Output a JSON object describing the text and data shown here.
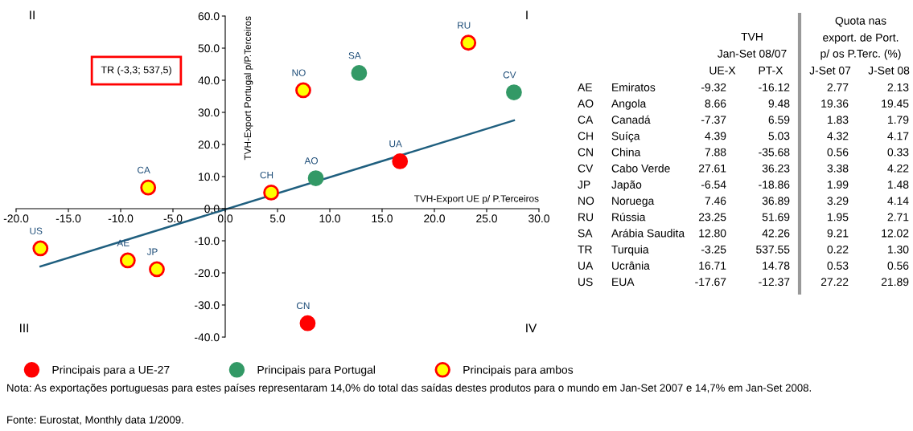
{
  "chart_data": [
    {
      "type": "scatter",
      "xlabel": "TVH-Export UE p/ P.Terceiros",
      "ylabel": "TVH-Export Portugal p/P.Terceiros",
      "xlim": [
        -20,
        30
      ],
      "ylim": [
        -40,
        60
      ],
      "xticks": [
        {
          "value": -20,
          "label": "-20.0"
        },
        {
          "value": -15,
          "label": "-15.0"
        },
        {
          "value": -10,
          "label": "-10.0"
        },
        {
          "value": -5,
          "label": "-5.0"
        },
        {
          "value": 0,
          "label": "0.0"
        },
        {
          "value": 5,
          "label": "5.0"
        },
        {
          "value": 10,
          "label": "10.0"
        },
        {
          "value": 15,
          "label": "15.0"
        },
        {
          "value": 20,
          "label": "20.0"
        },
        {
          "value": 25,
          "label": "25.0"
        },
        {
          "value": 30,
          "label": "30.0"
        }
      ],
      "yticks": [
        {
          "value": -40,
          "label": "-40.0"
        },
        {
          "value": -30,
          "label": "-30.0"
        },
        {
          "value": -20,
          "label": "-20.0"
        },
        {
          "value": -10,
          "label": "-10.0"
        },
        {
          "value": 0,
          "label": "0.0"
        },
        {
          "value": 10,
          "label": "10.0"
        },
        {
          "value": 20,
          "label": "20.0"
        },
        {
          "value": 30,
          "label": "30.0"
        },
        {
          "value": 40,
          "label": "40.0"
        },
        {
          "value": 50,
          "label": "50.0"
        },
        {
          "value": 60,
          "label": "60.0"
        }
      ],
      "marker": "circle",
      "grid": false,
      "legend": "bottom",
      "series": [
        {
          "name": "Principais para a UE-27",
          "color": "#ff0000",
          "x": [
            7.88,
            16.71
          ],
          "values": [
            -35.68,
            14.78
          ]
        },
        {
          "name": "Principais para Portugal",
          "color": "#339966",
          "x": [
            12.8,
            27.61,
            8.66
          ],
          "values": [
            42.26,
            36.23,
            9.48
          ]
        },
        {
          "name": "Principais para ambos",
          "color": "#ffff00",
          "x": [
            23.25,
            7.46,
            -7.37,
            4.39,
            -17.67,
            -9.32,
            -6.54
          ],
          "values": [
            51.69,
            36.89,
            6.59,
            5.03,
            -12.37,
            -16.12,
            -18.86
          ]
        },
        {
          "type": "line",
          "marker": "none",
          "color": "#1f5f7f",
          "x": [
            -17.67,
            27.61
          ],
          "values": [
            -18.0,
            27.5
          ]
        }
      ],
      "annotations": [
        {
          "text": "CN",
          "x": 7.88,
          "y": -35.68
        },
        {
          "text": "UA",
          "x": 16.71,
          "y": 14.78
        },
        {
          "text": "SA",
          "x": 12.8,
          "y": 42.26
        },
        {
          "text": "CV",
          "x": 27.61,
          "y": 36.23
        },
        {
          "text": "AO",
          "x": 8.66,
          "y": 9.48
        },
        {
          "text": "RU",
          "x": 23.25,
          "y": 51.69
        },
        {
          "text": "NO",
          "x": 7.46,
          "y": 36.89
        },
        {
          "text": "CA",
          "x": -7.37,
          "y": 6.59
        },
        {
          "text": "CH",
          "x": 4.39,
          "y": 5.03
        },
        {
          "text": "US",
          "x": -17.67,
          "y": -12.37
        },
        {
          "text": "AE",
          "x": -9.32,
          "y": -16.12
        },
        {
          "text": "JP",
          "x": -6.54,
          "y": -18.86
        },
        "II",
        "I",
        "III",
        "IV",
        "TR (-3,3; 537,5)",
        "Nota: As exportações portuguesas para estes países representaram 14,0% do total das saídas destes produtos para o mundo em Jan-Set 2007 e 14,7% em Jan-Set 2008.",
        "Fonte: Eurostat, Monthly data 1/2009."
      ]
    },
    {
      "type": "other",
      "annotations": [
        "TVH",
        "Jan-Set 08/07",
        "UE-X",
        "PT-X",
        "Quota nas",
        "export. de Port.",
        "p/ os P.Terc. (%)",
        "J-Set 07",
        "J-Set 08"
      ],
      "cell_labels": [
        [
          "AE",
          "Emiratos",
          "-9.32",
          "-16.12",
          "2.77",
          "2.13"
        ],
        [
          "AO",
          "Angola",
          "8.66",
          "9.48",
          "19.36",
          "19.45"
        ],
        [
          "CA",
          "Canadá",
          "-7.37",
          "6.59",
          "1.83",
          "1.79"
        ],
        [
          "CH",
          "Suíça",
          "4.39",
          "5.03",
          "4.32",
          "4.17"
        ],
        [
          "CN",
          "China",
          "7.88",
          "-35.68",
          "0.56",
          "0.33"
        ],
        [
          "CV",
          "Cabo Verde",
          "27.61",
          "36.23",
          "3.38",
          "4.22"
        ],
        [
          "JP",
          "Japão",
          "-6.54",
          "-18.86",
          "1.99",
          "1.48"
        ],
        [
          "NO",
          "Noruega",
          "7.46",
          "36.89",
          "3.29",
          "4.14"
        ],
        [
          "RU",
          "Rússia",
          "23.25",
          "51.69",
          "1.95",
          "2.71"
        ],
        [
          "SA",
          "Arábia Saudita",
          "12.80",
          "42.26",
          "9.21",
          "12.02"
        ],
        [
          "TR",
          "Turquia",
          "-3.25",
          "537.55",
          "0.22",
          "1.30"
        ],
        [
          "UA",
          "Ucrânia",
          "16.71",
          "14.78",
          "0.53",
          "0.56"
        ],
        [
          "US",
          "EUA",
          "-17.67",
          "-12.37",
          "27.22",
          "21.89"
        ]
      ]
    }
  ]
}
